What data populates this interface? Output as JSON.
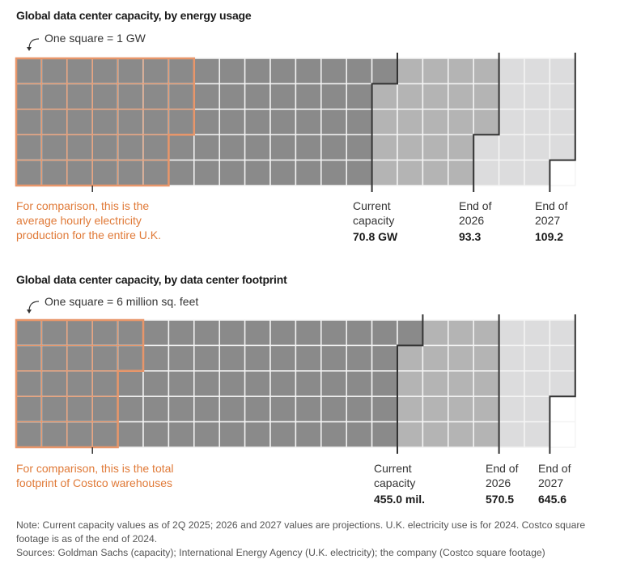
{
  "chart_data": [
    {
      "type": "waffle",
      "title": "Global data center capacity, by energy usage",
      "unit_note": "One square = 1 GW",
      "square_value": 1,
      "grid": {
        "rows": 5,
        "cols": 22
      },
      "comparison": {
        "squares": 33,
        "text": "For comparison, this is the average hourly electricity production for the entire U.K."
      },
      "milestones": [
        {
          "label_line1": "Current",
          "label_line2": "capacity",
          "value": 70.8,
          "value_label": "70.8 GW",
          "squares": 71
        },
        {
          "label_line1": "End of",
          "label_line2": "2026",
          "value": 93.3,
          "value_label": "93.3",
          "squares": 93
        },
        {
          "label_line1": "End of",
          "label_line2": "2027",
          "value": 109.2,
          "value_label": "109.2",
          "squares": 109
        }
      ]
    },
    {
      "type": "waffle",
      "title": "Global data center capacity, by data center footprint",
      "unit_note": "One square = 6 million sq. feet",
      "square_value": 6,
      "grid": {
        "rows": 5,
        "cols": 22
      },
      "comparison": {
        "squares": 22,
        "text": "For comparison, this is the total footprint of Costco warehouses"
      },
      "milestones": [
        {
          "label_line1": "Current",
          "label_line2": "capacity",
          "value": 455.0,
          "value_label": "455.0 mil.",
          "squares": 76
        },
        {
          "label_line1": "End of",
          "label_line2": "2026",
          "value": 570.5,
          "value_label": "570.5",
          "squares": 95
        },
        {
          "label_line1": "End of",
          "label_line2": "2027",
          "value": 645.6,
          "value_label": "645.6",
          "squares": 108
        }
      ]
    }
  ],
  "colors": {
    "current": "#8a8a8a",
    "y2026": "#b4b4b4",
    "y2027": "#dcdcdd",
    "empty": "#ffffff",
    "comparison_outline": "#e8966a",
    "comparison_text": "#e07a38",
    "milestone_line": "#333333"
  },
  "footnote": {
    "note": "Note: Current capacity values as of 2Q 2025; 2026 and 2027 values are projections. U.K. electricity use is for 2024. Costco square footage is as of the end of 2024.",
    "sources": "Sources: Goldman Sachs (capacity); International Energy Agency (U.K. electricity); the company (Costco square footage)"
  }
}
